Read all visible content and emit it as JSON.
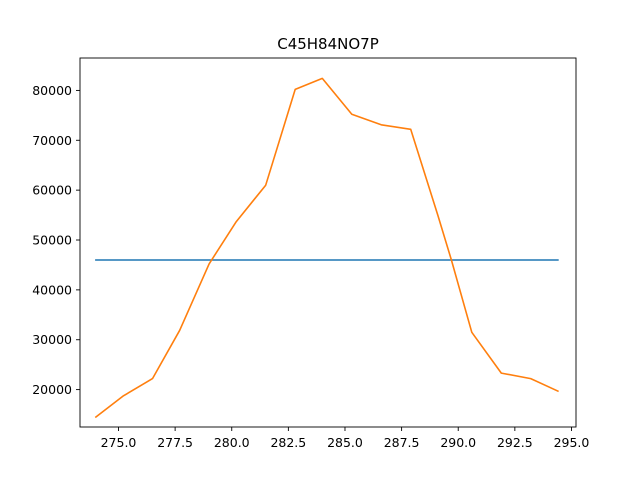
{
  "chart_data": {
    "type": "line",
    "title": "C45H84NO7P",
    "xlabel": "",
    "ylabel": "",
    "xlim": [
      273.3,
      295.2
    ],
    "ylim": [
      12500,
      86500
    ],
    "x_ticks": [
      275.0,
      277.5,
      280.0,
      282.5,
      285.0,
      287.5,
      290.0,
      292.5,
      295.0
    ],
    "x_tick_labels": [
      "275.0",
      "277.5",
      "280.0",
      "282.5",
      "285.0",
      "287.5",
      "290.0",
      "292.5",
      "295.0"
    ],
    "y_ticks": [
      20000,
      30000,
      40000,
      50000,
      60000,
      70000,
      80000
    ],
    "y_tick_labels": [
      "20000",
      "30000",
      "40000",
      "50000",
      "60000",
      "70000",
      "80000"
    ],
    "grid": false,
    "series": [
      {
        "color": "#1f77b4",
        "x": [
          274.0,
          294.4
        ],
        "y": [
          46000,
          46000
        ]
      },
      {
        "color": "#ff7f0e",
        "x": [
          274.0,
          275.2,
          276.5,
          277.7,
          279.0,
          280.2,
          281.5,
          282.8,
          284.0,
          285.3,
          286.6,
          287.9,
          289.1,
          289.7,
          290.6,
          291.9,
          293.2,
          294.4
        ],
        "y": [
          14500,
          18700,
          22200,
          31900,
          45200,
          53700,
          61000,
          80200,
          82400,
          75200,
          73100,
          72200,
          55000,
          46000,
          31500,
          23300,
          22200,
          19700
        ]
      }
    ]
  }
}
